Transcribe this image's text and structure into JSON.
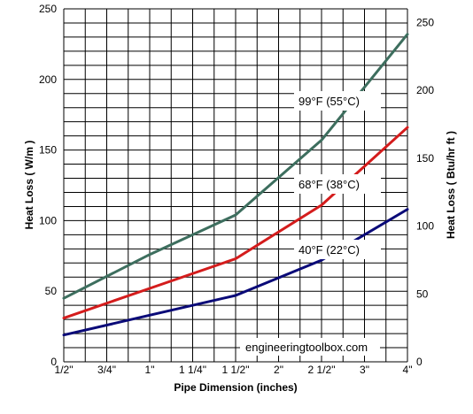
{
  "chart_data": {
    "type": "line",
    "xlabel": "Pipe Dimension (inches)",
    "ylabel_left": "Heat Loss ( W/m )",
    "ylabel_right": "Heat Loss ( Btu/hr ft )",
    "categories": [
      "1/2\"",
      "3/4\"",
      "1\"",
      "1 1/4\"",
      "1 1/2\"",
      "2\"",
      "2 1/2\"",
      "3\"",
      "4\""
    ],
    "ylim_left": [
      0,
      250
    ],
    "ylim_right": [
      0,
      260
    ],
    "yticks_left": [
      0,
      50,
      100,
      150,
      200,
      250
    ],
    "yticks_right": [
      0,
      50,
      100,
      150,
      200,
      250
    ],
    "grid": true,
    "series": [
      {
        "name": "99°F (55°C)",
        "color": "#3d6e5e",
        "points": [
          [
            0,
            45
          ],
          [
            2,
            76
          ],
          [
            4,
            104
          ],
          [
            6,
            157
          ],
          [
            8,
            232
          ]
        ]
      },
      {
        "name": "68°F (38°C)",
        "color": "#d41c1c",
        "points": [
          [
            0,
            31
          ],
          [
            2,
            52
          ],
          [
            4,
            73
          ],
          [
            6,
            111
          ],
          [
            8,
            166
          ]
        ]
      },
      {
        "name": "40°F (22°C)",
        "color": "#0a0a78",
        "points": [
          [
            0,
            19
          ],
          [
            2,
            33
          ],
          [
            4,
            47
          ],
          [
            6,
            72
          ],
          [
            8,
            108
          ]
        ]
      }
    ],
    "watermark": "engineeringtoolbox.com"
  }
}
